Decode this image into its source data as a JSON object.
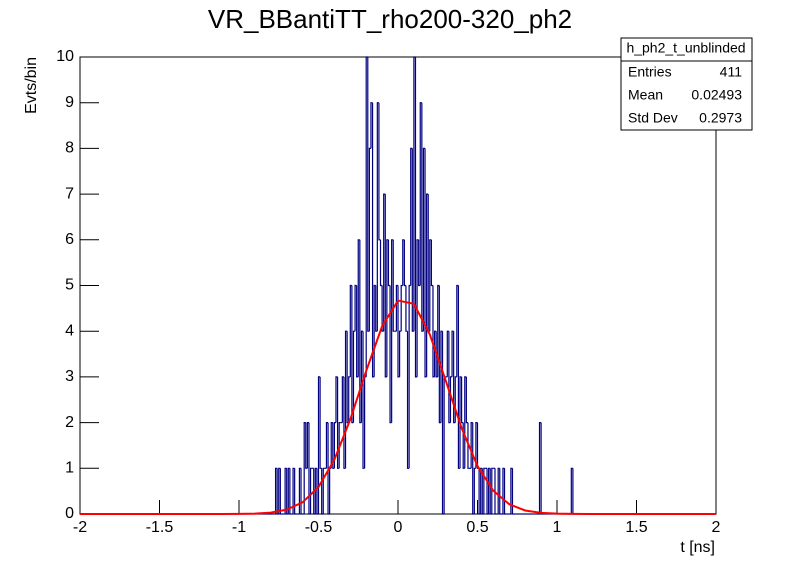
{
  "chart_data": {
    "type": "histogram",
    "title": "VR_BBantiTT_rho200-320_ph2",
    "xlabel": "t [ns]",
    "ylabel": "Evts/bin",
    "color": "#000080",
    "xlim": [
      -2,
      2
    ],
    "ylim": [
      0,
      10
    ],
    "xticks": [
      -2,
      -1.5,
      -1,
      -0.5,
      0,
      0.5,
      1,
      1.5,
      2
    ],
    "yticks": [
      0,
      1,
      2,
      3,
      4,
      5,
      6,
      7,
      8,
      9,
      10
    ],
    "bins": [
      -2,
      -1.99,
      -1.98,
      -1.97,
      -1.96,
      -1.95,
      -1.94,
      -1.93,
      -1.92,
      -1.91,
      -1.9,
      -1.89,
      -1.88,
      -1.87,
      -1.86,
      -1.85,
      -1.84,
      -1.83,
      -1.82,
      -1.81,
      -1.8,
      -1.79,
      -1.78,
      -1.77,
      -1.76,
      -1.75,
      -1.74,
      -1.73,
      -1.72,
      -1.71,
      -1.7,
      -1.69,
      -1.68,
      -1.67,
      -1.66,
      -1.65,
      -1.64,
      -1.63,
      -1.62,
      -1.61,
      -1.6,
      -1.59,
      -1.58,
      -1.57,
      -1.56,
      -1.55,
      -1.54,
      -1.53,
      -1.52,
      -1.51,
      -1.5,
      -1.49,
      -1.48,
      -1.47,
      -1.46,
      -1.45,
      -1.44,
      -1.43,
      -1.42,
      -1.41,
      -1.4,
      -1.39,
      -1.38,
      -1.37,
      -1.36,
      -1.35,
      -1.34,
      -1.33,
      -1.32,
      -1.31,
      -1.3,
      -1.29,
      -1.28,
      -1.27,
      -1.26,
      -1.25,
      -1.24,
      -1.23,
      -1.22,
      -1.21,
      -1.2,
      -1.19,
      -1.18,
      -1.17,
      -1.16,
      -1.15,
      -1.14,
      -1.13,
      -1.12,
      -1.11,
      -1.1,
      -1.09,
      -1.08,
      -1.07,
      -1.06,
      -1.05,
      -1.04,
      -1.03,
      -1.02,
      -1.01,
      -1,
      -0.99,
      -0.98,
      -0.97,
      -0.96,
      -0.95,
      -0.94,
      -0.93,
      -0.92,
      -0.91,
      -0.9,
      -0.89,
      -0.88,
      -0.87,
      -0.86,
      -0.85,
      -0.84,
      -0.83,
      -0.82,
      -0.81,
      -0.8,
      -0.79,
      -0.78,
      -0.77,
      -0.76,
      -0.75,
      -0.74,
      -0.73,
      -0.72,
      -0.71,
      -0.7,
      -0.69,
      -0.68,
      -0.67,
      -0.66,
      -0.65,
      -0.64,
      -0.63,
      -0.62,
      -0.61,
      -0.6,
      -0.59,
      -0.58,
      -0.57,
      -0.56,
      -0.55,
      -0.54,
      -0.53,
      -0.52,
      -0.51,
      -0.5,
      -0.49,
      -0.48,
      -0.47,
      -0.46,
      -0.45,
      -0.44,
      -0.43,
      -0.42,
      -0.41,
      -0.4,
      -0.39,
      -0.38,
      -0.37,
      -0.36,
      -0.35,
      -0.34,
      -0.33,
      -0.32,
      -0.31,
      -0.3,
      -0.29,
      -0.28,
      -0.27,
      -0.26,
      -0.25,
      -0.24,
      -0.23,
      -0.22,
      -0.21,
      -0.2,
      -0.19,
      -0.18,
      -0.17,
      -0.16,
      -0.15,
      -0.14,
      -0.13,
      -0.12,
      -0.11,
      -0.1,
      -0.09,
      -0.08,
      -0.07,
      -0.06,
      -0.05,
      -0.04,
      -0.03,
      -0.02,
      -0.01,
      0,
      0.01,
      0.02,
      0.03,
      0.04,
      0.05,
      0.06,
      0.07,
      0.08,
      0.09,
      0.1,
      0.11,
      0.12,
      0.13,
      0.14,
      0.15,
      0.16,
      0.17,
      0.18,
      0.19,
      0.2,
      0.21,
      0.22,
      0.23,
      0.24,
      0.25,
      0.26,
      0.27,
      0.28,
      0.29,
      0.3,
      0.31,
      0.32,
      0.33,
      0.34,
      0.35,
      0.36,
      0.37,
      0.38,
      0.39,
      0.4,
      0.41,
      0.42,
      0.43,
      0.44,
      0.45,
      0.46,
      0.47,
      0.48,
      0.49,
      0.5,
      0.51,
      0.52,
      0.53,
      0.54,
      0.55,
      0.56,
      0.57,
      0.58,
      0.59,
      0.6,
      0.61,
      0.62,
      0.63,
      0.64,
      0.65,
      0.66,
      0.67,
      0.68,
      0.69,
      0.7,
      0.71,
      0.72,
      0.73,
      0.74,
      0.75,
      0.76,
      0.77,
      0.78,
      0.79,
      0.8,
      0.81,
      0.82,
      0.83,
      0.84,
      0.85,
      0.86,
      0.87,
      0.88,
      0.89,
      0.9,
      0.91,
      0.92,
      0.93,
      0.94,
      0.95,
      0.96,
      0.97,
      0.98,
      0.99,
      1,
      1.01,
      1.02,
      1.03,
      1.04,
      1.05,
      1.06,
      1.07,
      1.08,
      1.09,
      1.1,
      1.11,
      1.12,
      1.13,
      1.14,
      1.15,
      1.16,
      1.17,
      1.18,
      1.19,
      1.2,
      1.21,
      1.22,
      1.23,
      1.24,
      1.25,
      1.26,
      1.27,
      1.28,
      1.29,
      1.3,
      1.31,
      1.32,
      1.33,
      1.34,
      1.35,
      1.36,
      1.37,
      1.38,
      1.39,
      1.4,
      1.41,
      1.42,
      1.43,
      1.44,
      1.45,
      1.46,
      1.47,
      1.48,
      1.49,
      1.5,
      1.51,
      1.52,
      1.53,
      1.54,
      1.55,
      1.56,
      1.57,
      1.58,
      1.59,
      1.6,
      1.61,
      1.62,
      1.63,
      1.64,
      1.65,
      1.66,
      1.67,
      1.68,
      1.69,
      1.7,
      1.71,
      1.72,
      1.73,
      1.74,
      1.75,
      1.76,
      1.77,
      1.78,
      1.79,
      1.8,
      1.81,
      1.82,
      1.83,
      1.84,
      1.85,
      1.86,
      1.87,
      1.88,
      1.89,
      1.9,
      1.91,
      1.92,
      1.93,
      1.94,
      1.95,
      1.96,
      1.97,
      1.98,
      1.99,
      2
    ],
    "counts": [
      0,
      0,
      0,
      0,
      0,
      0,
      0,
      0,
      0,
      0,
      0,
      0,
      0,
      0,
      0,
      0,
      0,
      0,
      0,
      0,
      0,
      0,
      0,
      0,
      0,
      0,
      0,
      0,
      0,
      0,
      0,
      0,
      0,
      0,
      0,
      0,
      0,
      0,
      0,
      0,
      0,
      0,
      0,
      0,
      0,
      0,
      0,
      0,
      0,
      0,
      0,
      0,
      0,
      0,
      0,
      0,
      0,
      0,
      0,
      0,
      0,
      0,
      0,
      0,
      0,
      0,
      0,
      0,
      0,
      0,
      0,
      0,
      0,
      0,
      0,
      0,
      0,
      0,
      0,
      0,
      0,
      0,
      0,
      0,
      0,
      0,
      0,
      0,
      0,
      0,
      0,
      0,
      0,
      0,
      0,
      0,
      0,
      0,
      0,
      0,
      0,
      0,
      0,
      0,
      0,
      0,
      0,
      0,
      0,
      0,
      0,
      0,
      0,
      0,
      0,
      0,
      0,
      0,
      0,
      0,
      0,
      0,
      0,
      1,
      0,
      1,
      0,
      0,
      0,
      1,
      0,
      1,
      0,
      0,
      1,
      0,
      0,
      0,
      1,
      0,
      0,
      2,
      1,
      2,
      0,
      1,
      1,
      0,
      1,
      0,
      3,
      1,
      0,
      1,
      1,
      2,
      0,
      1,
      2,
      1,
      2,
      3,
      1,
      2,
      2,
      3,
      1,
      4,
      2,
      3,
      5,
      2,
      4,
      5,
      3,
      6,
      2,
      4,
      1,
      3,
      10,
      4,
      8,
      9,
      3,
      5,
      4,
      9,
      6,
      5,
      4,
      7,
      3,
      6,
      5,
      2,
      6,
      4,
      4,
      5,
      3,
      4,
      5,
      6,
      5,
      4,
      1,
      5,
      8,
      4,
      10,
      3,
      6,
      5,
      9,
      4,
      8,
      3,
      7,
      4,
      6,
      5,
      3,
      4,
      3,
      5,
      2,
      4,
      0,
      3,
      3,
      4,
      2,
      3,
      4,
      2,
      3,
      5,
      1,
      3,
      2,
      1,
      3,
      2,
      1,
      1,
      2,
      0,
      1,
      2,
      1,
      0,
      1,
      0,
      1,
      1,
      0,
      1,
      0,
      1,
      1,
      0,
      0,
      1,
      0,
      0,
      1,
      0,
      0,
      0,
      0,
      1,
      0,
      0,
      0,
      0,
      0,
      0,
      0,
      0,
      0,
      0,
      0,
      0,
      0,
      0,
      0,
      0,
      0,
      2,
      0,
      0,
      0,
      0,
      0,
      0,
      0,
      0,
      0,
      0,
      0,
      0,
      0,
      0,
      0,
      0,
      0,
      0,
      0,
      1,
      0,
      0,
      0,
      0,
      0,
      0,
      0,
      0,
      0,
      0,
      0,
      0,
      0,
      0,
      0,
      0,
      0,
      0,
      0,
      0,
      0,
      0,
      0,
      0,
      0,
      0,
      0,
      0,
      0,
      0,
      0,
      0,
      0,
      0,
      0,
      0,
      0,
      0,
      0,
      0,
      0,
      0,
      0,
      0,
      0,
      0,
      0,
      0,
      0,
      0,
      0,
      0,
      0,
      0,
      0,
      0,
      0,
      0,
      0,
      0,
      0,
      0,
      0,
      0,
      0,
      0,
      0,
      0,
      0,
      0,
      0,
      0,
      0,
      0,
      0,
      0,
      0,
      0,
      0,
      0,
      0,
      0,
      0,
      0,
      0,
      0,
      0,
      0,
      0,
      0
    ],
    "fit": {
      "color": "#ff0000",
      "x": [
        -2,
        -1.9,
        -1.8,
        -1.7,
        -1.6,
        -1.5,
        -1.4,
        -1.3,
        -1.2,
        -1.1,
        -1,
        -0.9,
        -0.8,
        -0.7,
        -0.6,
        -0.5,
        -0.4,
        -0.3,
        -0.2,
        -0.1,
        0,
        0.1,
        0.2,
        0.3,
        0.4,
        0.5,
        0.6,
        0.7,
        0.8,
        0.9,
        1,
        1.1,
        1.2,
        1.3,
        1.4,
        1.5,
        1.6,
        1.7,
        1.8,
        1.9,
        2
      ],
      "values": [
        0,
        0,
        0,
        0,
        0,
        0,
        0,
        0,
        0,
        0,
        0.002,
        0.009,
        0.031,
        0.096,
        0.256,
        0.592,
        1.19,
        2.07,
        3.13,
        4.11,
        4.67,
        4.6,
        3.93,
        2.92,
        1.88,
        1.05,
        0.506,
        0.212,
        0.077,
        0.024,
        0.007,
        0.002,
        0,
        0,
        0,
        0,
        0,
        0,
        0,
        0,
        0
      ]
    },
    "stats": {
      "title": "h_ph2_t_unblinded",
      "rows": [
        {
          "label": "Entries",
          "value": 411
        },
        {
          "label": "Mean",
          "value": 0.02493
        },
        {
          "label": "Std Dev",
          "value": 0.2973
        }
      ]
    }
  }
}
